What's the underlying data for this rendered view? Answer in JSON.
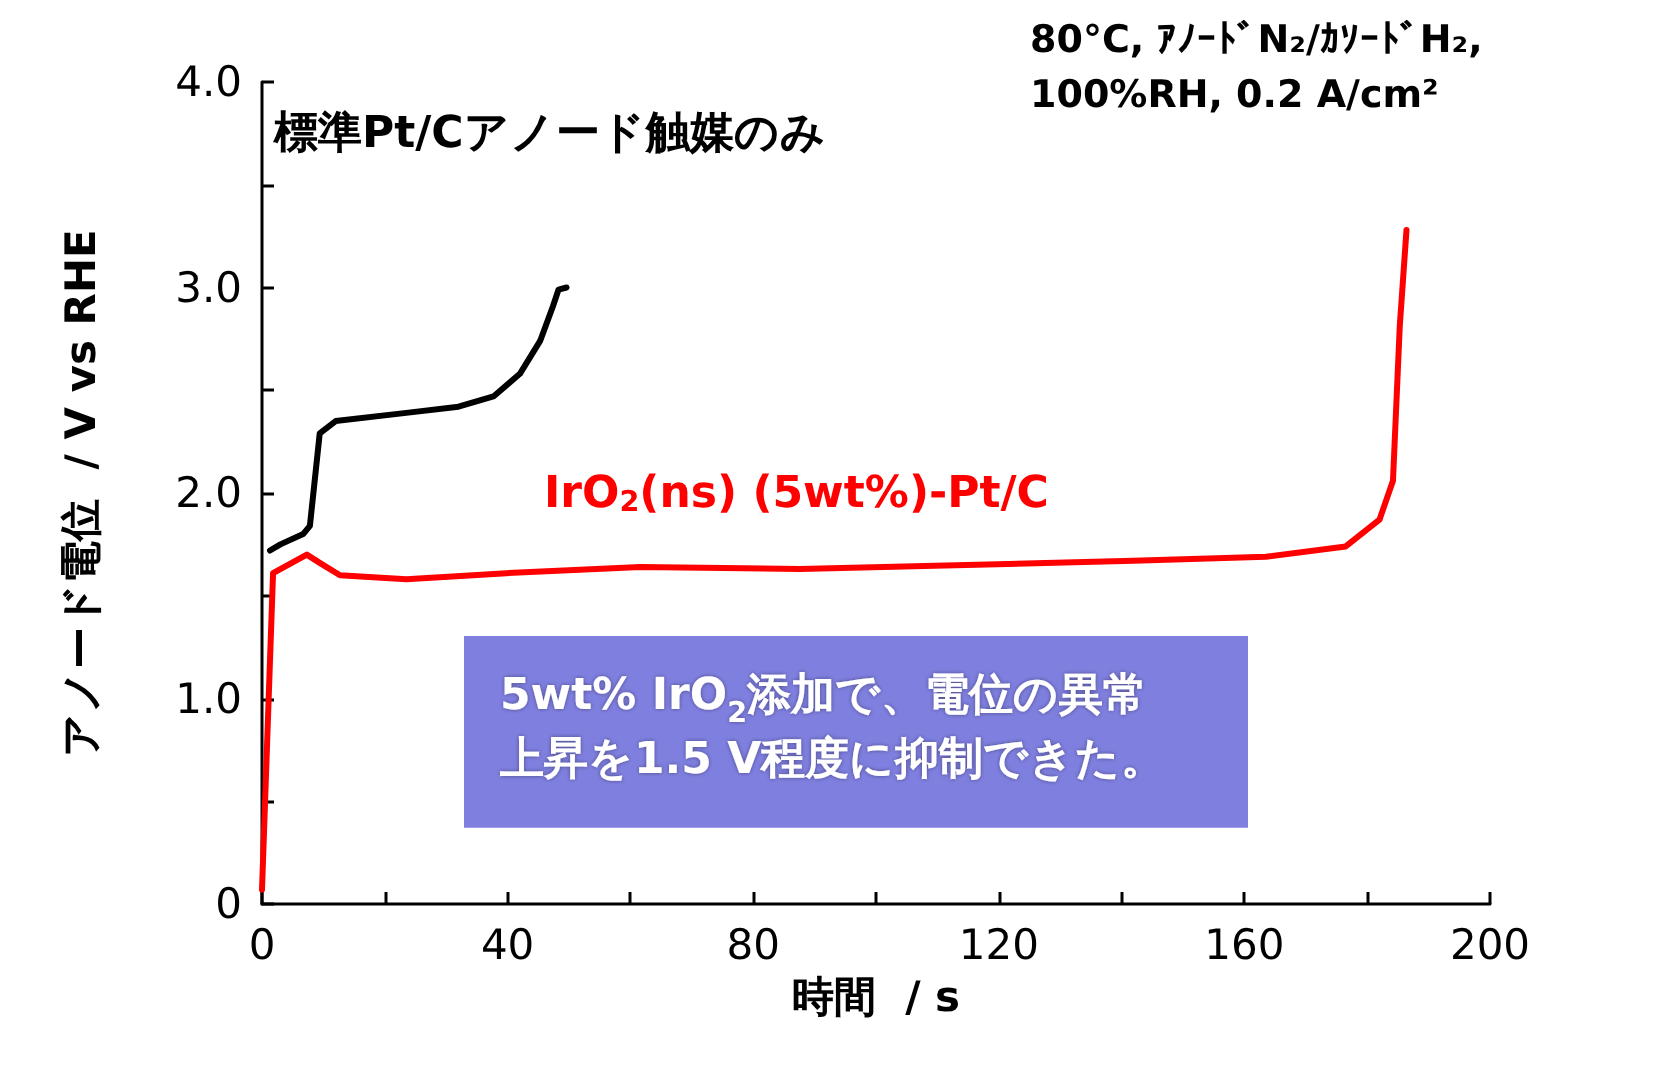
{
  "chart_data": {
    "type": "line",
    "xlabel": "時間  / s",
    "ylabel": "アノード電位  / V vs RHE",
    "xlim": [
      0,
      200
    ],
    "xticks": [
      0,
      {
        "value": 20,
        "label": null
      },
      40,
      {
        "value": 60,
        "label": null
      },
      80,
      {
        "value": 100,
        "label": null
      },
      120,
      {
        "value": 140,
        "label": null
      },
      160,
      {
        "value": 180,
        "label": null
      },
      200
    ],
    "ylim": [
      0,
      4.0
    ],
    "yticks": [
      {
        "value": 0,
        "label": "0"
      },
      {
        "value": 0.5,
        "label": null
      },
      {
        "value": 1,
        "label": "1.0"
      },
      {
        "value": 1.5,
        "label": null
      },
      {
        "value": 2,
        "label": "2.0"
      },
      {
        "value": 2.5,
        "label": null
      },
      {
        "value": 3,
        "label": "3.0"
      },
      {
        "value": 3.5,
        "label": null
      },
      {
        "value": 4,
        "label": "4.0"
      }
    ],
    "grid": false,
    "legend": false,
    "marker": "none",
    "line_style": "solid",
    "series": [
      {
        "name": "標準Pt/Cアノード触媒のみ",
        "color": "#000000",
        "x": [
          1.3,
          3,
          6.7,
          7.8,
          9.4,
          12,
          23.5,
          32,
          37.7,
          42,
          45.3,
          47.4,
          48.3,
          49.6
        ],
        "values": [
          1.72,
          1.75,
          1.8,
          1.84,
          2.29,
          2.35,
          2.39,
          2.42,
          2.47,
          2.58,
          2.74,
          2.91,
          2.99,
          3.0
        ]
      },
      {
        "name": "IrO$_{2}$(ns) (5wt%)-Pt/C",
        "color": "#ff0000",
        "x": [
          0,
          1.8,
          7.3,
          9.4,
          12.7,
          23.5,
          39.8,
          61.6,
          87.6,
          141.9,
          163.5,
          176.5,
          182,
          184.2,
          185.3,
          186.4
        ],
        "values": [
          0.07,
          1.61,
          1.7,
          1.66,
          1.6,
          1.58,
          1.61,
          1.64,
          1.63,
          1.67,
          1.69,
          1.74,
          1.87,
          2.06,
          2.81,
          3.28
        ]
      }
    ],
    "annotations": [
      "80°C, ｱﾉｰﾄﾞN₂/ｶｿｰﾄﾞH₂,\n100%RH, 0.2 A/cm²",
      "5wt% IrO$_{2}$添加で、電位の異常",
      "上昇を1.5 V程度に抑制できた。"
    ]
  }
}
